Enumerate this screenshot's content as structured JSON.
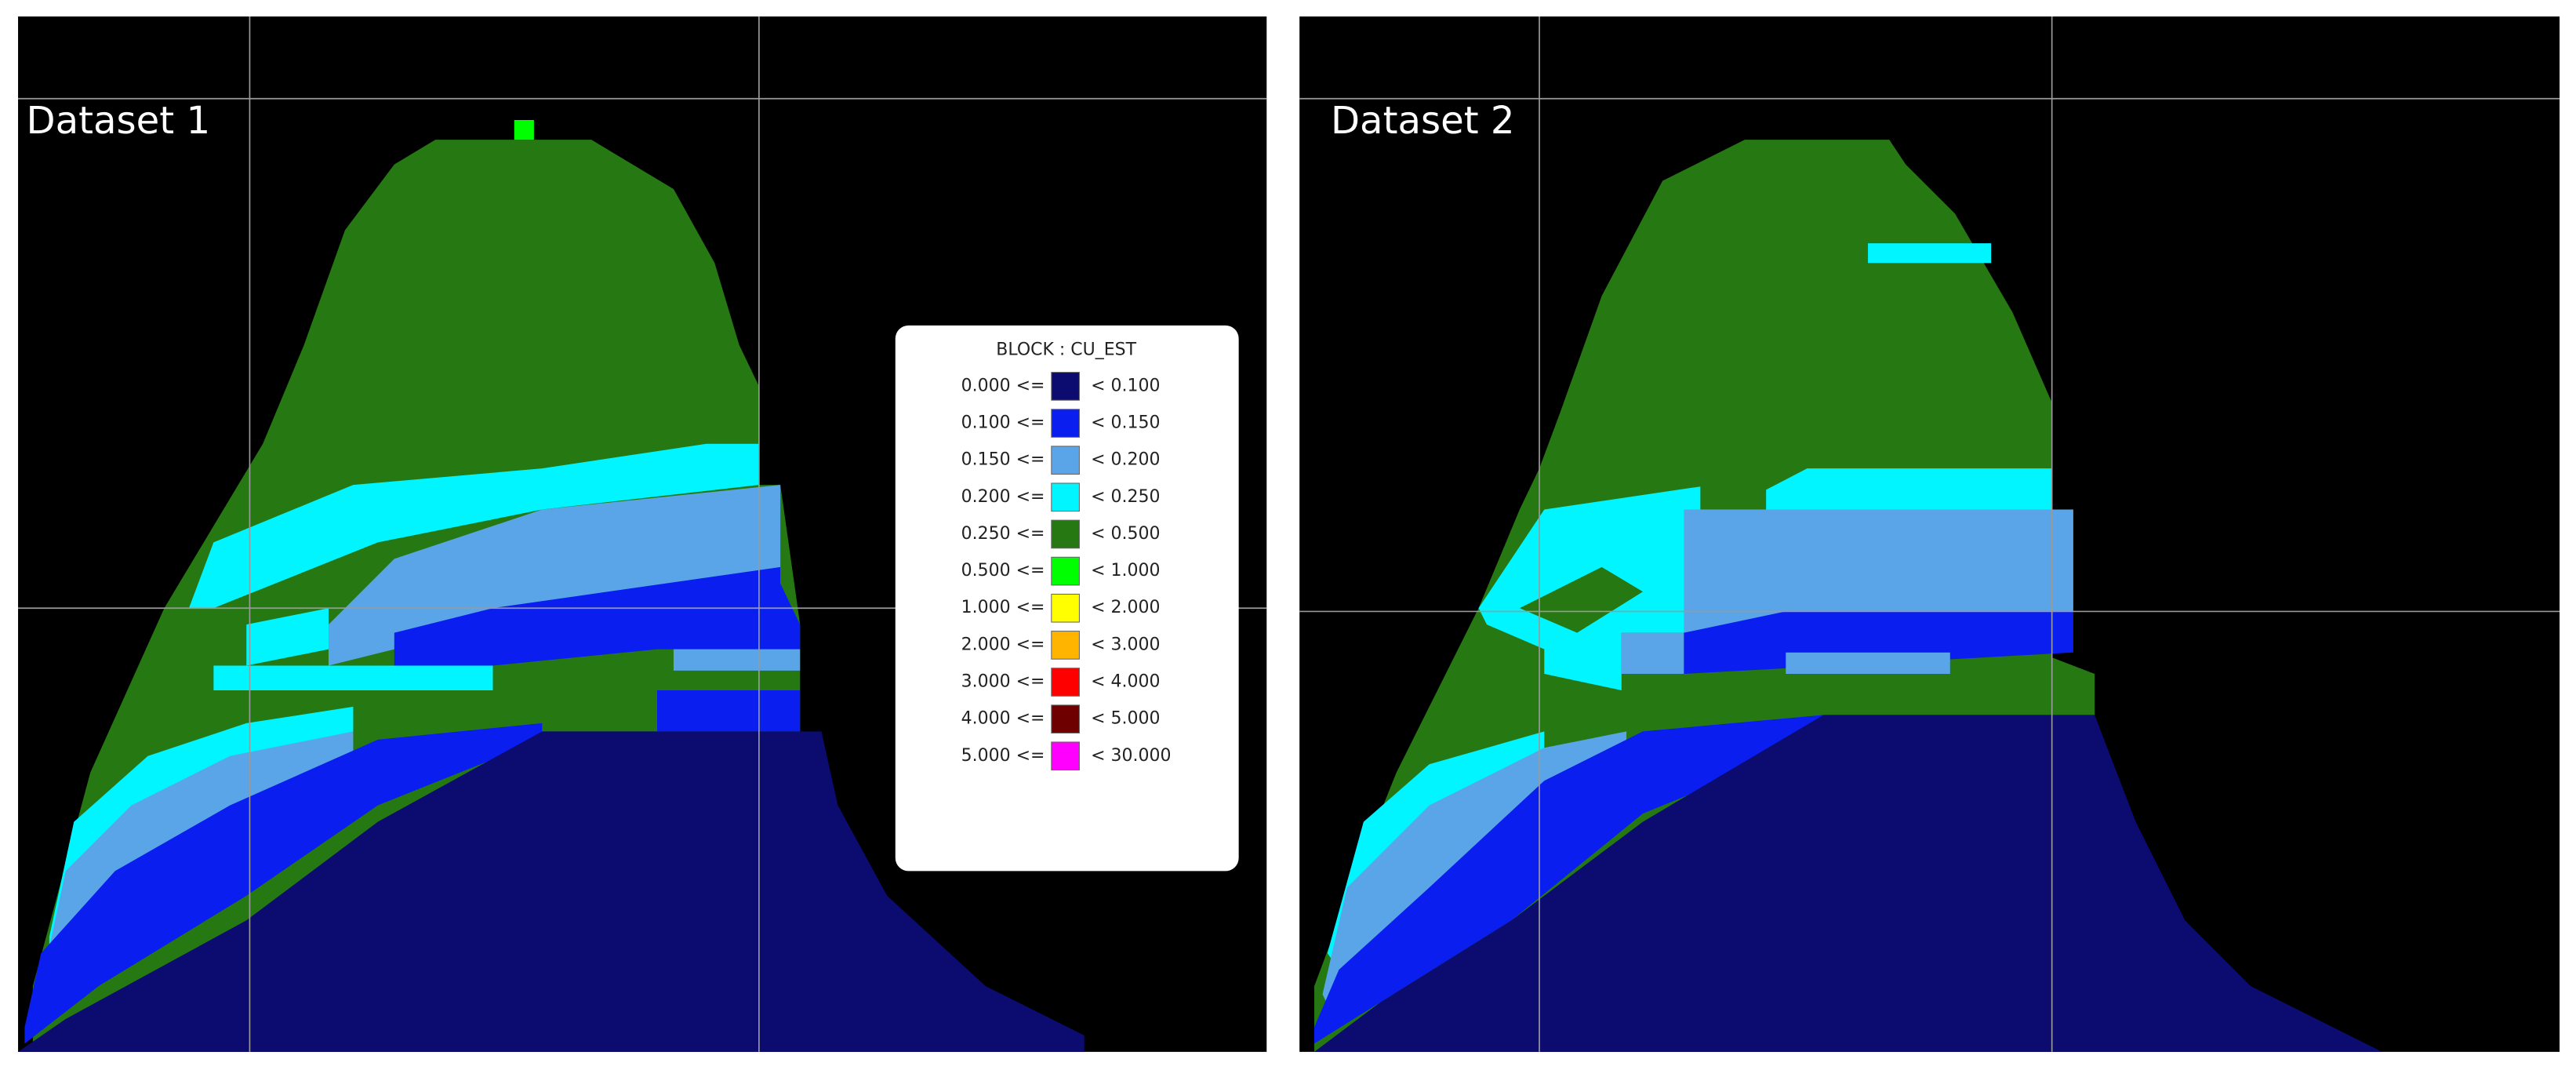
{
  "panels": [
    {
      "title": "Dataset 1"
    },
    {
      "title": "Dataset 2"
    }
  ],
  "legend": {
    "title": "BLOCK : CU_EST",
    "rows": [
      {
        "from": "0.000 <=",
        "to": "< 0.100",
        "color": "#0b0b70"
      },
      {
        "from": "0.100 <=",
        "to": "< 0.150",
        "color": "#0a1ef0"
      },
      {
        "from": "0.150 <=",
        "to": "< 0.200",
        "color": "#5aa5e8"
      },
      {
        "from": "0.200 <=",
        "to": "< 0.250",
        "color": "#00f5ff"
      },
      {
        "from": "0.250 <=",
        "to": "< 0.500",
        "color": "#267812"
      },
      {
        "from": "0.500 <=",
        "to": "< 1.000",
        "color": "#00ff00"
      },
      {
        "from": "1.000 <=",
        "to": "< 2.000",
        "color": "#ffff00"
      },
      {
        "from": "2.000 <=",
        "to": "< 3.000",
        "color": "#ffb400"
      },
      {
        "from": "3.000 <=",
        "to": "< 4.000",
        "color": "#ff0000"
      },
      {
        "from": "4.000 <=",
        "to": "< 5.000",
        "color": "#6e0000"
      },
      {
        "from": "5.000 <=",
        "to": "< 30.000",
        "color": "#ff00ff"
      }
    ]
  }
}
